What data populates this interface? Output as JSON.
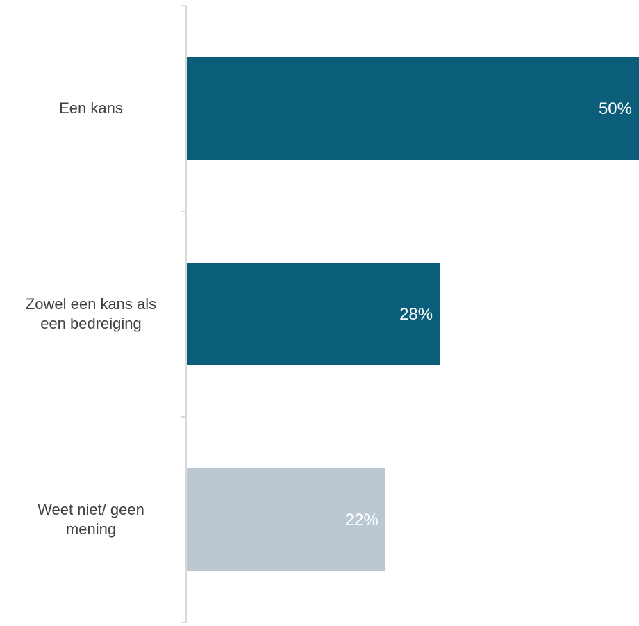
{
  "chart_data": {
    "type": "bar",
    "orientation": "horizontal",
    "categories": [
      [
        "Een kans"
      ],
      [
        "Zowel een kans als",
        "een bedreiging"
      ],
      [
        "Weet niet/ geen",
        "mening"
      ]
    ],
    "values": [
      50,
      28,
      22
    ],
    "value_labels": [
      "50%",
      "28%",
      "22%"
    ],
    "bar_colors": [
      "#0b5e7a",
      "#0b5e7a",
      "#bcc8d1"
    ],
    "label_color": "#ffffff",
    "axis_color": "#d9d9d9",
    "category_label_color": "#404040",
    "title": "",
    "xlabel": "",
    "ylabel": "",
    "xlim": [
      0,
      50
    ],
    "grid": false,
    "legend": "none"
  }
}
